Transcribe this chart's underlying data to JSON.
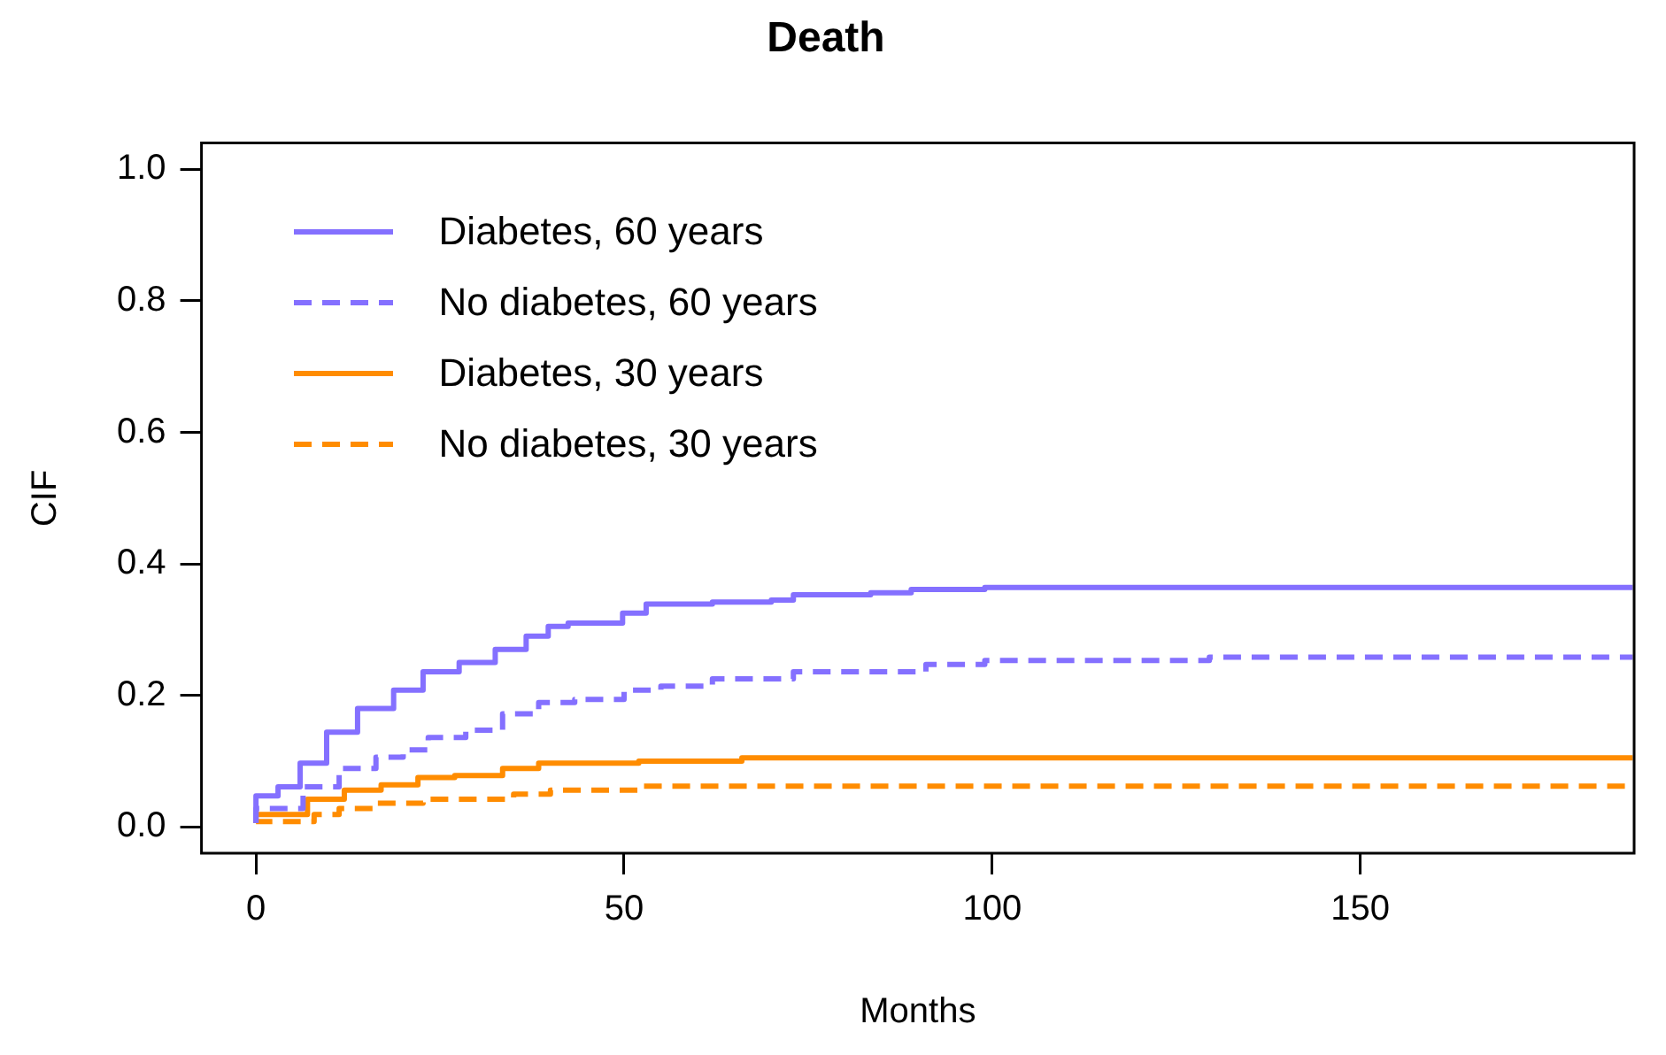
{
  "chart_data": {
    "type": "step",
    "title": "Death",
    "xlabel": "Months",
    "ylabel": "CIF",
    "xlim": [
      -7.4,
      187.2
    ],
    "ylim": [
      -0.04,
      1.04
    ],
    "xticks": [
      0,
      50,
      100,
      150
    ],
    "yticks": [
      {
        "value": 0,
        "label": "0.0"
      },
      0.2,
      0.4,
      0.6,
      0.8,
      {
        "value": 1,
        "label": "1.0"
      }
    ],
    "legend": "top left",
    "grid": false,
    "marker": "none",
    "series": [
      {
        "name": "Diabetes, 60 years",
        "color": "#8470ff",
        "line_style": "solid",
        "x": [
          0,
          3,
          6,
          9.6,
          13.8,
          18.7,
          22.7,
          27.6,
          32.5,
          36.7,
          39.7,
          42.4,
          49.8,
          53,
          62,
          70,
          73,
          83.5,
          89,
          99,
          144,
          187
        ],
        "values": [
          0.006,
          0.047,
          0.061,
          0.097,
          0.144,
          0.18,
          0.208,
          0.236,
          0.25,
          0.27,
          0.29,
          0.305,
          0.31,
          0.325,
          0.339,
          0.342,
          0.345,
          0.353,
          0.356,
          0.361,
          0.364,
          0.364
        ]
      },
      {
        "name": "No diabetes, 60 years",
        "color": "#8470ff",
        "line_style": "dashed",
        "x": [
          0,
          6.4,
          11.3,
          16.3,
          20,
          23.4,
          28.5,
          33.5,
          38.4,
          43.3,
          50,
          55,
          62,
          73,
          91,
          99,
          129.5,
          142,
          187
        ],
        "values": [
          0.006,
          0.028,
          0.061,
          0.089,
          0.106,
          0.117,
          0.136,
          0.147,
          0.172,
          0.189,
          0.194,
          0.208,
          0.214,
          0.225,
          0.236,
          0.247,
          0.253,
          0.258,
          0.258
        ]
      },
      {
        "name": "Diabetes, 30 years",
        "color": "#ff8c00",
        "line_style": "solid",
        "x": [
          0,
          7,
          12,
          17,
          22,
          27,
          33.5,
          38.4,
          52,
          66,
          92.6,
          187
        ],
        "values": [
          0.006,
          0.019,
          0.042,
          0.056,
          0.064,
          0.075,
          0.078,
          0.089,
          0.097,
          0.1,
          0.105,
          0.105
        ]
      },
      {
        "name": "No diabetes, 30 years",
        "color": "#ff8c00",
        "line_style": "dashed",
        "x": [
          0,
          7.9,
          11.3,
          16.3,
          22.7,
          35,
          40,
          52,
          99,
          187
        ],
        "values": [
          0.006,
          0.008,
          0.019,
          0.028,
          0.036,
          0.042,
          0.05,
          0.056,
          0.062,
          0.062
        ]
      }
    ]
  }
}
